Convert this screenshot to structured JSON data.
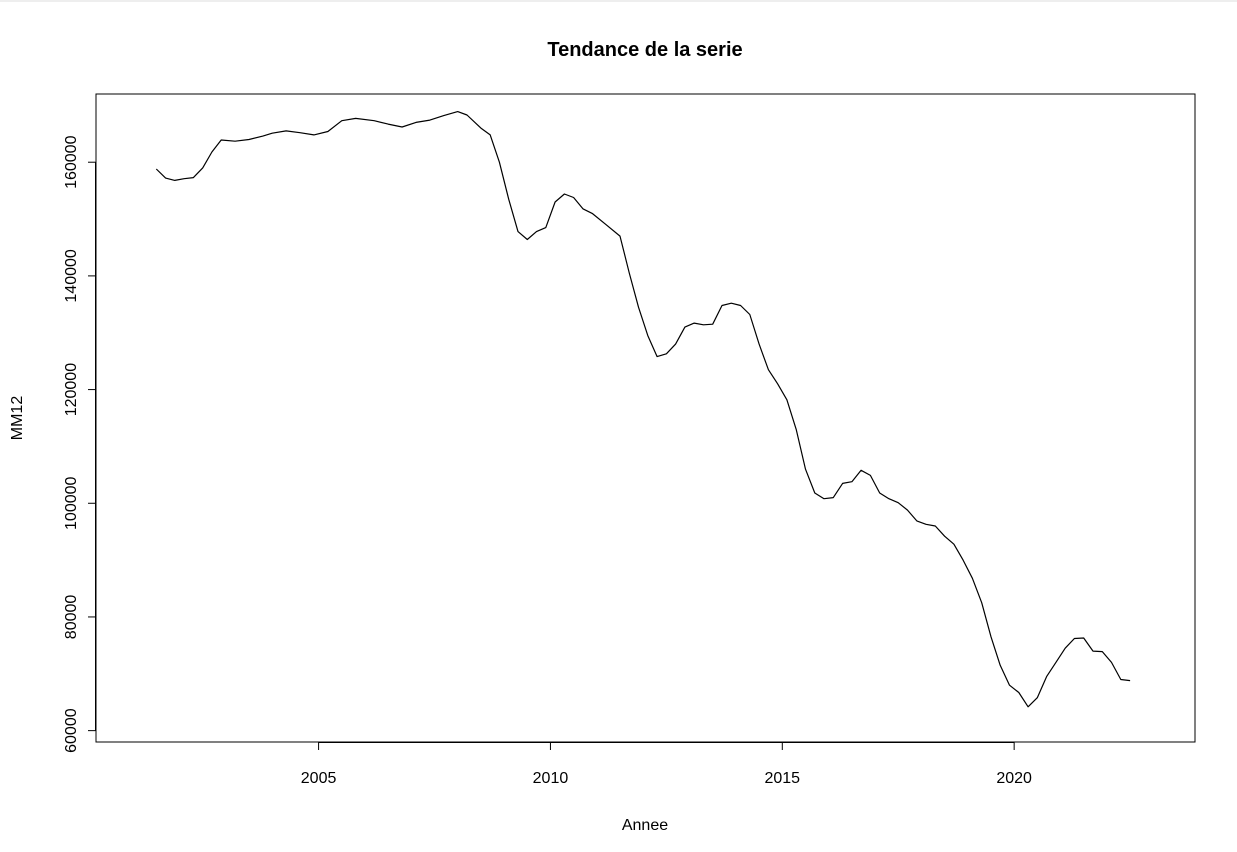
{
  "chart_data": {
    "type": "line",
    "title": "Tendance de la serie",
    "xlabel": "Annee",
    "ylabel": "MM12",
    "xlim": [
      2000.2,
      2023.9
    ],
    "ylim": [
      58000,
      172000
    ],
    "x_ticks": [
      "2005",
      "2010",
      "2015",
      "2020"
    ],
    "y_ticks": [
      "60000",
      "80000",
      "100000",
      "120000",
      "140000",
      "160000"
    ],
    "grid": false,
    "series": [
      {
        "name": "",
        "x": [
          2001.5,
          2001.7,
          2001.9,
          2002.1,
          2002.3,
          2002.5,
          2002.7,
          2002.9,
          2003.2,
          2003.5,
          2003.8,
          2004.0,
          2004.3,
          2004.6,
          2004.9,
          2005.2,
          2005.5,
          2005.8,
          2006.2,
          2006.5,
          2006.8,
          2007.1,
          2007.4,
          2007.7,
          2008.0,
          2008.2,
          2008.5,
          2008.7,
          2008.9,
          2009.1,
          2009.3,
          2009.5,
          2009.7,
          2009.9,
          2010.1,
          2010.3,
          2010.5,
          2010.7,
          2010.9,
          2011.2,
          2011.5,
          2011.7,
          2011.9,
          2012.1,
          2012.3,
          2012.5,
          2012.7,
          2012.9,
          2013.1,
          2013.3,
          2013.5,
          2013.7,
          2013.9,
          2014.1,
          2014.3,
          2014.5,
          2014.7,
          2014.9,
          2015.1,
          2015.3,
          2015.5,
          2015.7,
          2015.9,
          2016.1,
          2016.3,
          2016.5,
          2016.7,
          2016.9,
          2017.1,
          2017.3,
          2017.5,
          2017.7,
          2017.9,
          2018.1,
          2018.3,
          2018.5,
          2018.7,
          2018.9,
          2019.1,
          2019.3,
          2019.5,
          2019.7,
          2019.9,
          2020.1,
          2020.3,
          2020.5,
          2020.7,
          2020.9,
          2021.1,
          2021.3,
          2021.5,
          2021.7,
          2021.9,
          2022.1,
          2022.3,
          2022.5
        ],
        "values": [
          158800,
          157200,
          156800,
          157100,
          157300,
          159000,
          161800,
          163900,
          163700,
          164000,
          164600,
          165100,
          165500,
          165200,
          164800,
          165400,
          167300,
          167700,
          167300,
          166700,
          166200,
          167000,
          167400,
          168200,
          168900,
          168300,
          166000,
          164800,
          160000,
          153500,
          147800,
          146400,
          147800,
          148500,
          153000,
          154400,
          153800,
          151800,
          151000,
          149000,
          147000,
          140500,
          134500,
          129500,
          125800,
          126300,
          128000,
          131000,
          131700,
          131400,
          131500,
          134800,
          135200,
          134800,
          133200,
          128000,
          123500,
          121000,
          118200,
          113000,
          106000,
          101800,
          100800,
          101000,
          103500,
          103800,
          105800,
          104900,
          101800,
          100800,
          100100,
          98800,
          96900,
          96300,
          96000,
          94200,
          92800,
          90000,
          86800,
          82500,
          76500,
          71500,
          68000,
          66700,
          64200,
          65800,
          69500,
          72000,
          74500,
          76200,
          76300,
          74000,
          73900,
          72000,
          69000,
          68800
        ]
      }
    ]
  }
}
